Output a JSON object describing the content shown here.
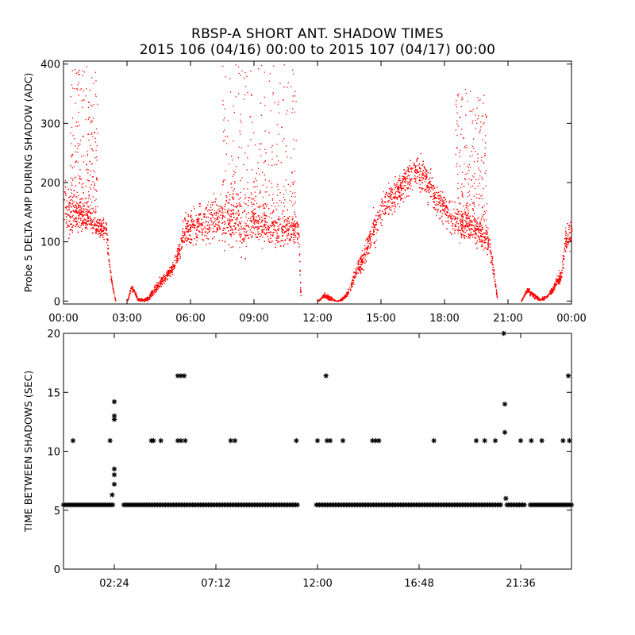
{
  "figure": {
    "title": "RBSP-A SHORT ANT. SHADOW TIMES",
    "subtitle": "2015 106 (04/16) 00:00 to 2015 107 (04/17) 00:00"
  },
  "chart_data": [
    {
      "type": "scatter",
      "ylabel": "Probe 5 DELTA AMP DURING SHADOW (ADC)",
      "xlabel": "",
      "xlim": [
        0,
        24
      ],
      "ylim": [
        -5,
        405
      ],
      "x_unit": "hours",
      "xtick_values": [
        0,
        3,
        6,
        9,
        12,
        15,
        18,
        21,
        24
      ],
      "xtick_labels": [
        "00:00",
        "03:00",
        "06:00",
        "09:00",
        "12:00",
        "15:00",
        "18:00",
        "21:00",
        "00:00"
      ],
      "ytick_values": [
        0,
        100,
        200,
        300,
        400
      ],
      "ytick_labels": [
        "0",
        "100",
        "200",
        "300",
        "400"
      ],
      "marker": "dot",
      "color": "#ff0000",
      "profile_hours": [
        0.0,
        0.15,
        0.3,
        0.5,
        0.7,
        0.9,
        1.1,
        1.4,
        1.7,
        2.0,
        2.15,
        2.3,
        2.45,
        2.6,
        2.8,
        3.0,
        3.2,
        3.35,
        3.5,
        3.75,
        4.0,
        4.3,
        4.6,
        4.9,
        5.2,
        5.5,
        5.65,
        5.8,
        6.0,
        6.5,
        7.0,
        7.5,
        8.0,
        8.5,
        9.0,
        9.5,
        10.0,
        10.5,
        11.0,
        11.1,
        11.2,
        11.35,
        11.5,
        11.75,
        12.0,
        12.3,
        12.6,
        12.9,
        13.2,
        13.5,
        13.8,
        14.1,
        14.4,
        14.7,
        15.0,
        15.5,
        16.0,
        16.5,
        17.0,
        17.5,
        18.0,
        18.5,
        19.0,
        19.3,
        19.6,
        19.9,
        20.1,
        20.3,
        20.5,
        20.75,
        21.0,
        21.3,
        21.6,
        21.9,
        22.2,
        22.5,
        22.8,
        23.1,
        23.3,
        23.5,
        23.7,
        24.0
      ],
      "profile_median": [
        175,
        165,
        150,
        140,
        150,
        135,
        140,
        130,
        125,
        120,
        60,
        25,
        0,
        0,
        0,
        0,
        25,
        15,
        3,
        2,
        5,
        20,
        35,
        45,
        60,
        90,
        115,
        120,
        125,
        130,
        135,
        140,
        135,
        130,
        140,
        130,
        120,
        125,
        120,
        120,
        0,
        0,
        0,
        0,
        0,
        10,
        5,
        0,
        5,
        20,
        50,
        70,
        100,
        130,
        155,
        175,
        195,
        220,
        210,
        180,
        155,
        140,
        130,
        125,
        115,
        105,
        100,
        50,
        0,
        0,
        0,
        0,
        0,
        20,
        10,
        3,
        8,
        20,
        35,
        45,
        100,
        120
      ],
      "profile_spread": [
        30,
        40,
        45,
        25,
        30,
        20,
        20,
        15,
        15,
        20,
        10,
        0,
        0,
        0,
        0,
        0,
        5,
        5,
        2,
        2,
        4,
        6,
        8,
        8,
        10,
        15,
        25,
        25,
        30,
        30,
        35,
        40,
        45,
        40,
        35,
        30,
        25,
        25,
        20,
        20,
        0,
        0,
        0,
        0,
        0,
        4,
        3,
        0,
        3,
        5,
        10,
        15,
        20,
        25,
        25,
        25,
        25,
        25,
        25,
        25,
        25,
        25,
        25,
        25,
        20,
        20,
        20,
        10,
        0,
        0,
        0,
        0,
        0,
        5,
        4,
        2,
        3,
        5,
        8,
        10,
        20,
        25
      ],
      "outlier_ranges_hours": [
        [
          0.3,
          1.6,
          150,
          400
        ],
        [
          7.5,
          11.0,
          160,
          400
        ],
        [
          18.5,
          20.0,
          120,
          360
        ]
      ]
    },
    {
      "type": "scatter",
      "ylabel": "TIME BETWEEN SHADOWS (SEC)",
      "xlabel": "",
      "xlim": [
        0,
        24
      ],
      "ylim": [
        0,
        20
      ],
      "x_unit": "hours",
      "xtick_values": [
        2.4,
        7.2,
        12.0,
        16.8,
        21.6
      ],
      "xtick_labels": [
        "02:24",
        "07:12",
        "12:00",
        "16:48",
        "21:36"
      ],
      "ytick_values": [
        0,
        5,
        10,
        15,
        20
      ],
      "ytick_labels": [
        "0",
        "5",
        "10",
        "15",
        "20"
      ],
      "marker": "asterisk",
      "color": "#000000",
      "baseline_value": 5.45,
      "baseline_ranges_hours": [
        [
          0.0,
          2.35
        ],
        [
          2.85,
          3.9
        ],
        [
          4.0,
          11.1
        ],
        [
          11.95,
          20.7
        ],
        [
          20.95,
          21.8
        ],
        [
          22.05,
          24.0
        ]
      ],
      "points": [
        [
          0.45,
          10.9
        ],
        [
          2.2,
          10.9
        ],
        [
          2.3,
          6.3
        ],
        [
          2.4,
          14.2
        ],
        [
          2.4,
          13.0
        ],
        [
          2.4,
          12.7
        ],
        [
          2.4,
          8.5
        ],
        [
          2.4,
          8.0
        ],
        [
          2.4,
          7.2
        ],
        [
          4.15,
          10.9
        ],
        [
          4.25,
          10.9
        ],
        [
          4.6,
          10.9
        ],
        [
          5.4,
          16.4
        ],
        [
          5.55,
          16.4
        ],
        [
          5.7,
          16.4
        ],
        [
          5.4,
          10.9
        ],
        [
          5.55,
          10.9
        ],
        [
          5.75,
          10.9
        ],
        [
          7.9,
          10.9
        ],
        [
          8.1,
          10.9
        ],
        [
          11.0,
          10.9
        ],
        [
          12.0,
          10.9
        ],
        [
          12.4,
          16.4
        ],
        [
          12.45,
          10.9
        ],
        [
          12.6,
          10.9
        ],
        [
          13.2,
          10.9
        ],
        [
          14.6,
          10.9
        ],
        [
          14.75,
          10.9
        ],
        [
          14.9,
          10.9
        ],
        [
          17.5,
          10.9
        ],
        [
          19.5,
          10.9
        ],
        [
          19.9,
          10.9
        ],
        [
          20.4,
          10.9
        ],
        [
          20.8,
          20.0
        ],
        [
          20.85,
          14.0
        ],
        [
          20.85,
          11.6
        ],
        [
          20.9,
          6.0
        ],
        [
          21.6,
          10.9
        ],
        [
          22.1,
          10.9
        ],
        [
          22.6,
          10.9
        ],
        [
          23.6,
          10.9
        ],
        [
          23.85,
          16.4
        ],
        [
          23.9,
          10.9
        ]
      ]
    }
  ]
}
